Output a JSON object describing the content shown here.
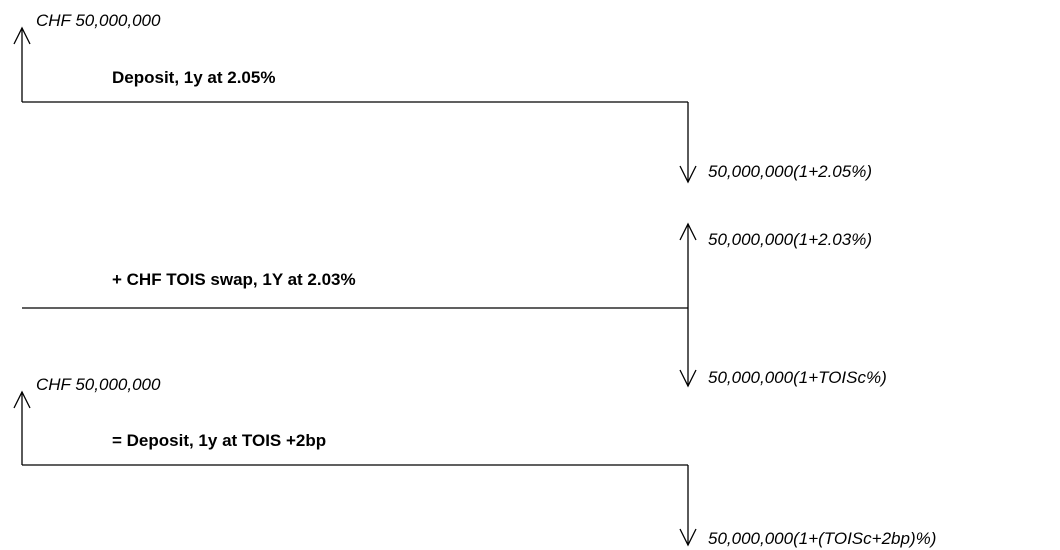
{
  "sections": [
    {
      "label": "Deposit, 1y at 2.05%",
      "notional": "CHF 50,000,000",
      "outflow": "50,000,000(1+2.05%)"
    },
    {
      "label": "+ CHF TOIS swap, 1Y at 2.03%",
      "inflow": "50,000,000(1+2.03%)",
      "outflow": "50,000,000(1+TOISc%)"
    },
    {
      "label": "= Deposit, 1y at TOIS +2bp",
      "notional": "CHF 50,000,000",
      "outflow": "50,000,000(1+(TOISc+2bp)%)"
    }
  ]
}
